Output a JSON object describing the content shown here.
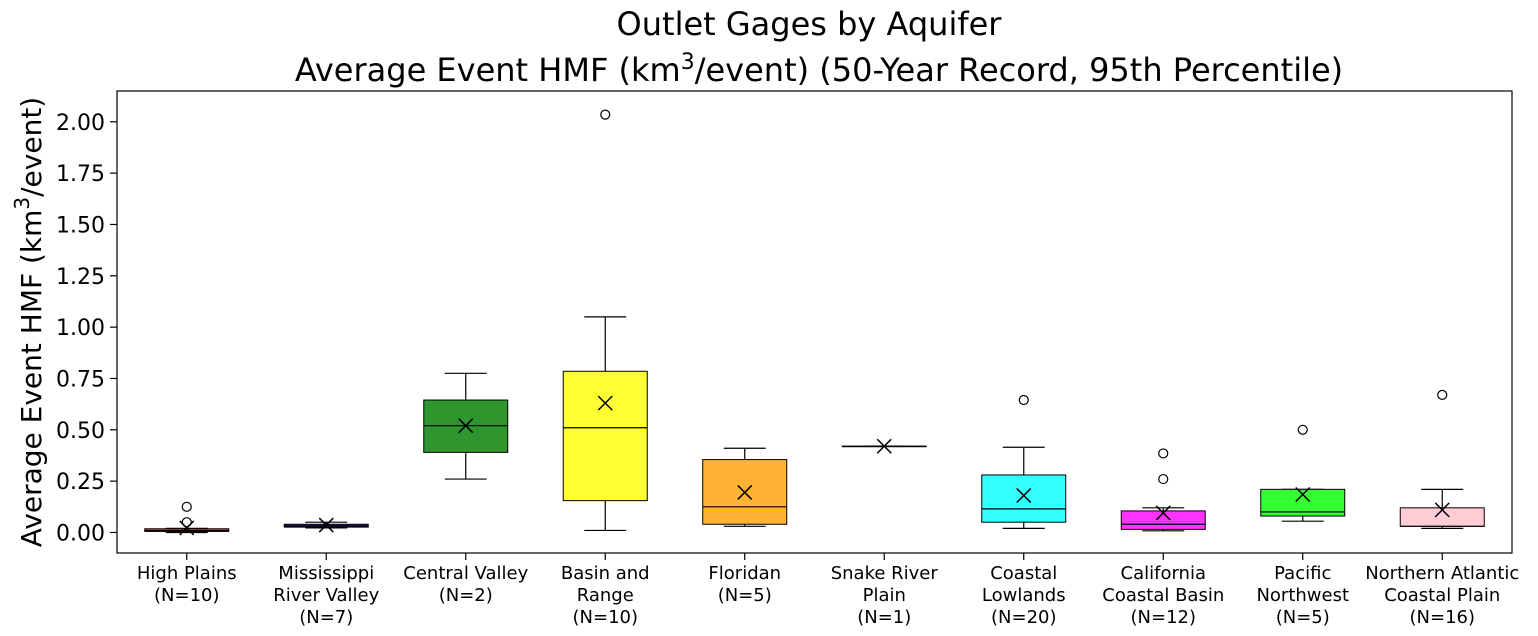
{
  "chart_data": {
    "type": "box",
    "title_line1": "Outlet Gages by Aquifer",
    "title_line2_pre": "Average Event HMF (km",
    "title_line2_sup": "3",
    "title_line2_post": "/event) (50-Year Record, 95th Percentile)",
    "ylabel_pre": "Average Event HMF (km",
    "ylabel_sup": "3",
    "ylabel_post": "/event)",
    "xlabel": "",
    "ylim": [
      -0.1,
      2.15
    ],
    "yticks": [
      0.0,
      0.25,
      0.5,
      0.75,
      1.0,
      1.25,
      1.5,
      1.75,
      2.0
    ],
    "ytick_labels": [
      "0.00",
      "0.25",
      "0.50",
      "0.75",
      "1.00",
      "1.25",
      "1.50",
      "1.75",
      "2.00"
    ],
    "grid": false,
    "mean_marker": "x",
    "categories": [
      {
        "label": [
          "High Plains",
          "(N=10)"
        ],
        "color": "#e06060",
        "whislo": 0.0,
        "q1": 0.005,
        "med": 0.01,
        "q3": 0.018,
        "whishi": 0.02,
        "mean": 0.022,
        "fliers": [
          0.05,
          0.125
        ]
      },
      {
        "label": [
          "Mississippi",
          "River Valley",
          "(N=7)"
        ],
        "color": "#3a3acc",
        "whislo": 0.022,
        "q1": 0.026,
        "med": 0.032,
        "q3": 0.04,
        "whishi": 0.05,
        "mean": 0.036,
        "fliers": []
      },
      {
        "label": [
          "Central Valley",
          "(N=2)"
        ],
        "color": "#2f962f",
        "whislo": 0.26,
        "q1": 0.39,
        "med": 0.52,
        "q3": 0.645,
        "whishi": 0.775,
        "mean": 0.52,
        "fliers": []
      },
      {
        "label": [
          "Basin and",
          "Range",
          "(N=10)"
        ],
        "color": "#ffff33",
        "whislo": 0.01,
        "q1": 0.155,
        "med": 0.51,
        "q3": 0.785,
        "whishi": 1.05,
        "mean": 0.63,
        "fliers": [
          2.035
        ]
      },
      {
        "label": [
          "Floridan",
          "(N=5)"
        ],
        "color": "#ffb233",
        "whislo": 0.03,
        "q1": 0.04,
        "med": 0.125,
        "q3": 0.355,
        "whishi": 0.41,
        "mean": 0.195,
        "fliers": []
      },
      {
        "label": [
          "Snake River",
          "Plain",
          "(N=1)"
        ],
        "color": "#808080",
        "whislo": 0.42,
        "q1": 0.42,
        "med": 0.42,
        "q3": 0.42,
        "whishi": 0.42,
        "mean": 0.42,
        "fliers": []
      },
      {
        "label": [
          "Coastal",
          "Lowlands",
          "(N=20)"
        ],
        "color": "#33ffff",
        "whislo": 0.02,
        "q1": 0.05,
        "med": 0.115,
        "q3": 0.28,
        "whishi": 0.415,
        "mean": 0.18,
        "fliers": [
          0.645
        ]
      },
      {
        "label": [
          "California",
          "Coastal Basin",
          "(N=12)"
        ],
        "color": "#ff33ff",
        "whislo": 0.008,
        "q1": 0.015,
        "med": 0.04,
        "q3": 0.105,
        "whishi": 0.12,
        "mean": 0.095,
        "fliers": [
          0.26,
          0.385
        ]
      },
      {
        "label": [
          "Pacific",
          "Northwest",
          "(N=5)"
        ],
        "color": "#33ff33",
        "whislo": 0.055,
        "q1": 0.08,
        "med": 0.1,
        "q3": 0.21,
        "whishi": 0.21,
        "mean": 0.185,
        "fliers": [
          0.5
        ]
      },
      {
        "label": [
          "Northern Atlantic",
          "Coastal Plain",
          "(N=16)"
        ],
        "color": "#ffccd5",
        "whislo": 0.02,
        "q1": 0.03,
        "med": 0.03,
        "q3": 0.12,
        "whishi": 0.21,
        "mean": 0.11,
        "fliers": [
          0.67
        ]
      }
    ]
  }
}
